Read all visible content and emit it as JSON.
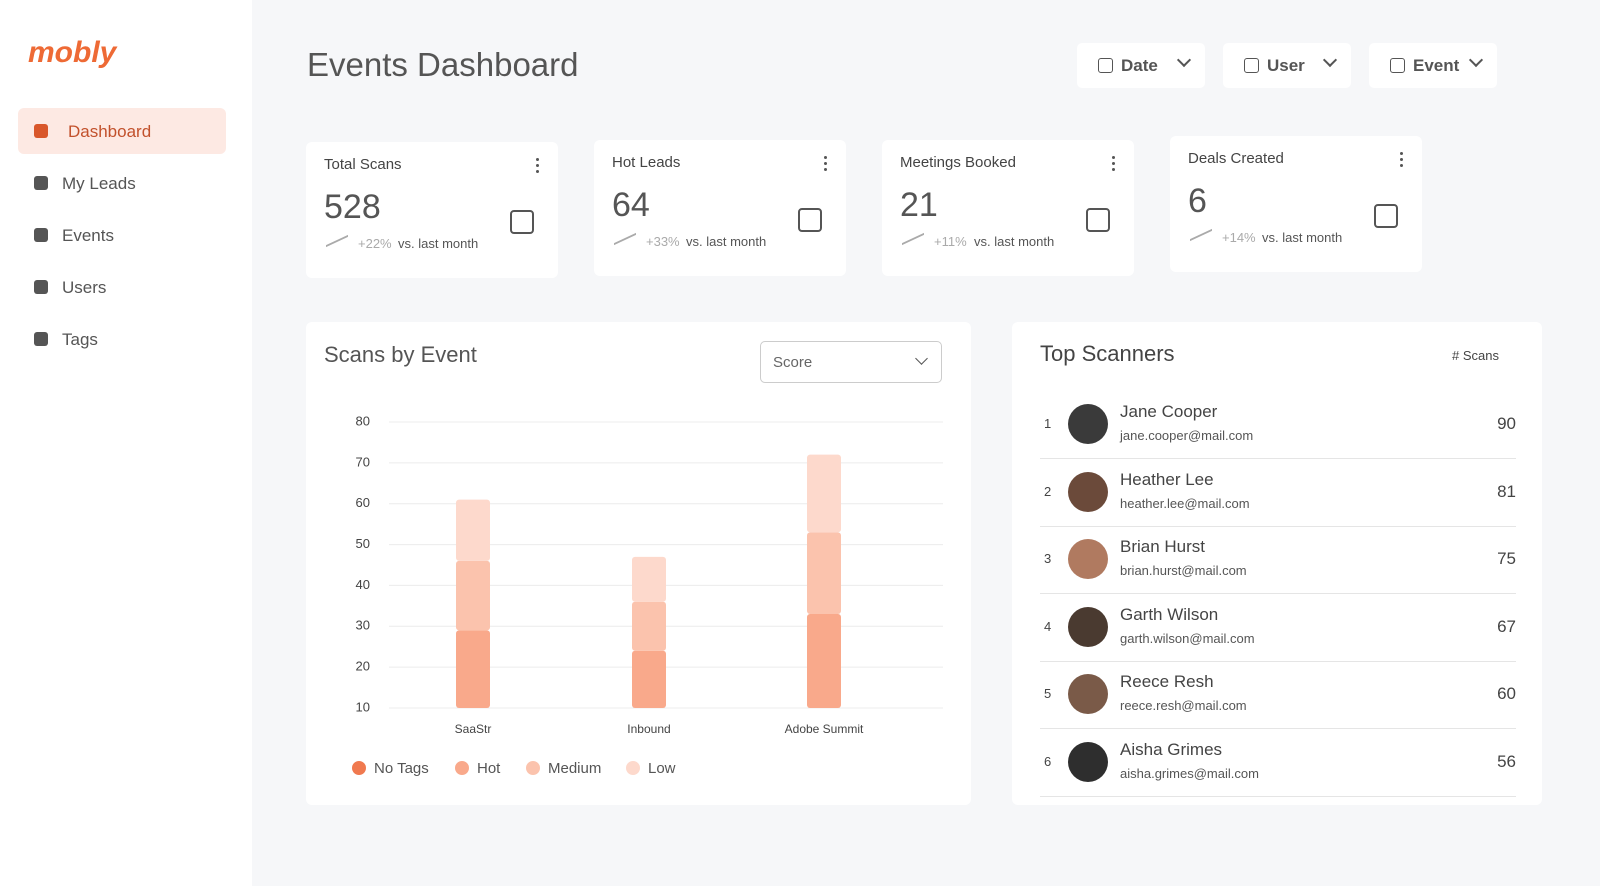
{
  "sidebar": {
    "logo": "mobly",
    "nav": [
      "Dashboard",
      "My Leads",
      "Events",
      "Users",
      "Tags"
    ]
  },
  "header": {
    "title": "Events Dashboard",
    "filters": [
      "Date",
      "User",
      "Event"
    ]
  },
  "stats": [
    {
      "label": "Total Scans",
      "value": 528,
      "change": "+22%",
      "note": "vs. last month"
    },
    {
      "label": "Hot Leads",
      "value": 64,
      "change": "+33%",
      "note": "vs. last month"
    },
    {
      "label": "Meetings Booked",
      "value": 21,
      "change": "+11%",
      "note": "vs. last month"
    },
    {
      "label": "Deals Created",
      "value": 6,
      "change": "+14%",
      "note": "vs. last month"
    }
  ],
  "scans_panel": {
    "selector": "Score"
  },
  "chart_data": {
    "type": "bar",
    "stacked": true,
    "title": "Scans by Event",
    "categories": [
      "SaaStr",
      "Inbound",
      "Adobe Summit"
    ],
    "series": [
      {
        "name": "No Tags",
        "color": "#f0794f",
        "values": [
          null,
          null,
          null
        ]
      },
      {
        "name": "Hot",
        "color": "#f9a98b",
        "values": [
          19,
          14,
          23
        ]
      },
      {
        "name": "Medium",
        "color": "#fbc3ad",
        "values": [
          17,
          12,
          20
        ]
      },
      {
        "name": "Low",
        "color": "#fdd9cc",
        "values": [
          15,
          11,
          19
        ]
      }
    ],
    "ylim": [
      10,
      80
    ],
    "yticks": [
      10,
      20,
      30,
      40,
      50,
      60,
      70,
      80
    ],
    "grid": true
  },
  "top_scanners": {
    "title": "Top Scanners",
    "column": "# Scans",
    "rows": [
      {
        "rank": 1,
        "name": "Jane Cooper",
        "email": "jane.cooper@mail.com",
        "scans": 90
      },
      {
        "rank": 2,
        "name": "Heather Lee",
        "email": "heather.lee@mail.com",
        "scans": 81
      },
      {
        "rank": 3,
        "name": "Brian Hurst",
        "email": "brian.hurst@mail.com",
        "scans": 75
      },
      {
        "rank": 4,
        "name": "Garth Wilson",
        "email": "garth.wilson@mail.com",
        "scans": 67
      },
      {
        "rank": 5,
        "name": "Reece Resh",
        "email": "reece.resh@mail.com",
        "scans": 60
      },
      {
        "rank": 6,
        "name": "Aisha Grimes",
        "email": "aisha.grimes@mail.com",
        "scans": 56
      }
    ]
  }
}
